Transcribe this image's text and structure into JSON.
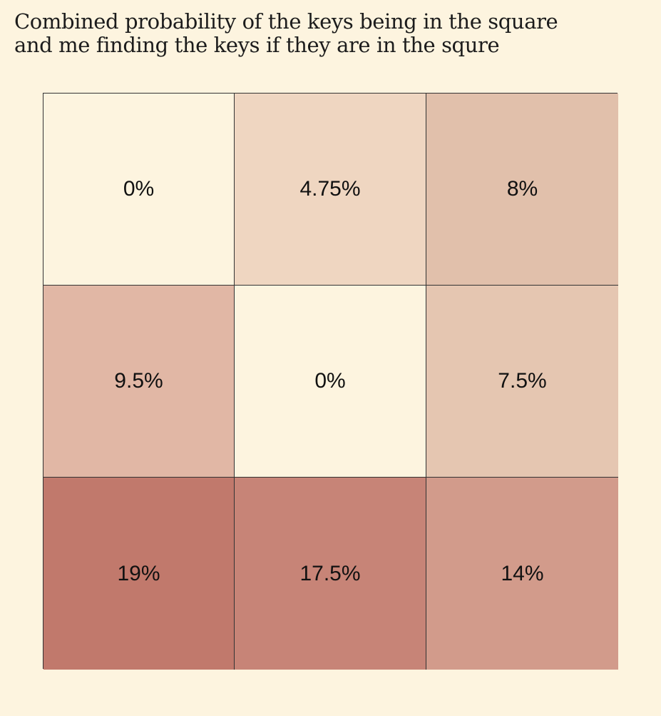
{
  "title_lines": [
    "Combined probability of the keys being in the square",
    "and me finding the keys if they are in the squre"
  ],
  "chart_data": {
    "type": "heatmap",
    "title": "Combined probability of the keys being in the square and me finding the keys if they are in the squre",
    "rows": 3,
    "cols": 3,
    "values": [
      [
        0,
        4.75,
        8
      ],
      [
        9.5,
        0,
        7.5
      ],
      [
        19,
        17.5,
        14
      ]
    ],
    "labels": [
      [
        "0%",
        "4.75%",
        "8%"
      ],
      [
        "9.5%",
        "0%",
        "7.5%"
      ],
      [
        "19%",
        "17.5%",
        "14%"
      ]
    ],
    "colors": [
      [
        "#fdf4df",
        "#efd6c1",
        "#e1c0ab"
      ],
      [
        "#e1b7a5",
        "#fdf4df",
        "#e5c6b1"
      ],
      [
        "#c1796c",
        "#c78477",
        "#d29b8b"
      ]
    ]
  }
}
